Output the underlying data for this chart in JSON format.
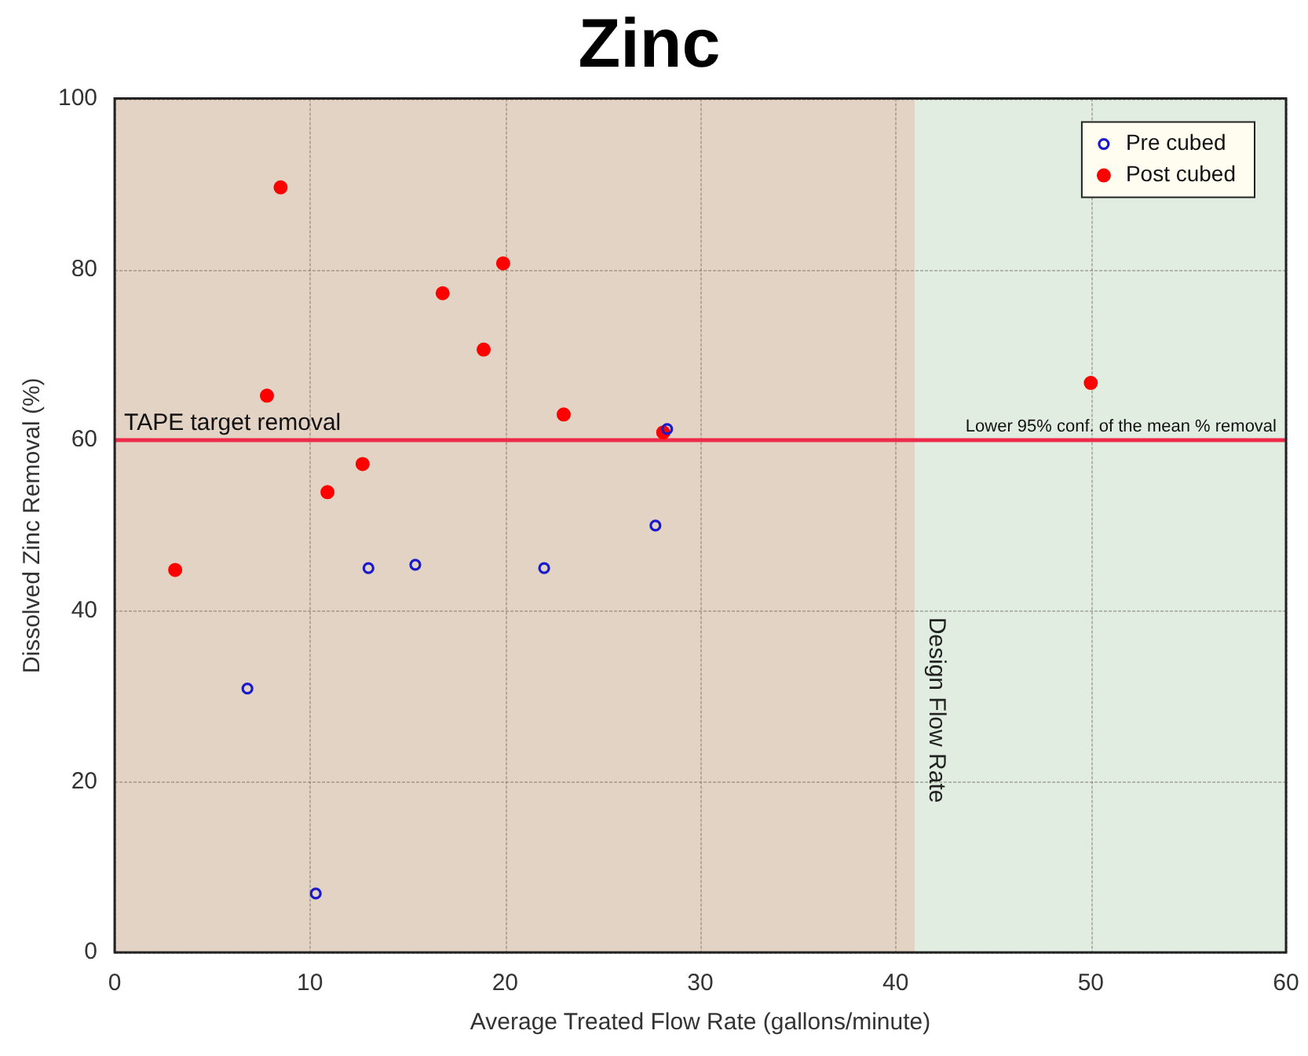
{
  "chart_data": {
    "type": "scatter",
    "title": "Zinc",
    "xlabel": "Average Treated Flow Rate (gallons/minute)",
    "ylabel": "Dissolved Zinc Removal (%)",
    "xlim": [
      0,
      60
    ],
    "xticks": [
      0,
      10,
      20,
      30,
      40,
      50,
      60
    ],
    "ylim": [
      0,
      100
    ],
    "yticks": [
      0,
      20,
      40,
      60,
      80,
      100
    ],
    "grid": true,
    "legend": "top right",
    "marker": "circle",
    "series": [
      {
        "name": "Pre cubed",
        "color": "#1a1acc",
        "x": [
          6.8,
          10.3,
          13.0,
          15.4,
          22.0,
          27.7,
          28.3
        ],
        "values": [
          30.9,
          6.9,
          45.0,
          45.4,
          45.0,
          50.0,
          61.3
        ]
      },
      {
        "name": "Post cubed",
        "color": "#ff0000",
        "x": [
          3.1,
          7.8,
          8.5,
          10.9,
          12.7,
          16.8,
          18.9,
          19.9,
          23.0,
          28.1,
          50.0
        ],
        "values": [
          44.8,
          65.2,
          89.6,
          53.9,
          57.2,
          77.2,
          70.6,
          80.7,
          63.0,
          60.9,
          66.7
        ]
      }
    ],
    "bands": [
      {
        "axis": "x",
        "from": 0,
        "to": 41,
        "color": "#e3d3c5"
      },
      {
        "axis": "x",
        "from": 41,
        "to": 60,
        "color": "#e0ede0",
        "label": "Design Flow Rate"
      }
    ],
    "ref_lines": [
      {
        "axis": "y",
        "value": 60,
        "label": "TAPE target removal",
        "color": "#ee2a4a"
      }
    ],
    "annotations": [
      {
        "text": "Lower 95% conf. of the mean % removal",
        "y": 60
      }
    ]
  }
}
